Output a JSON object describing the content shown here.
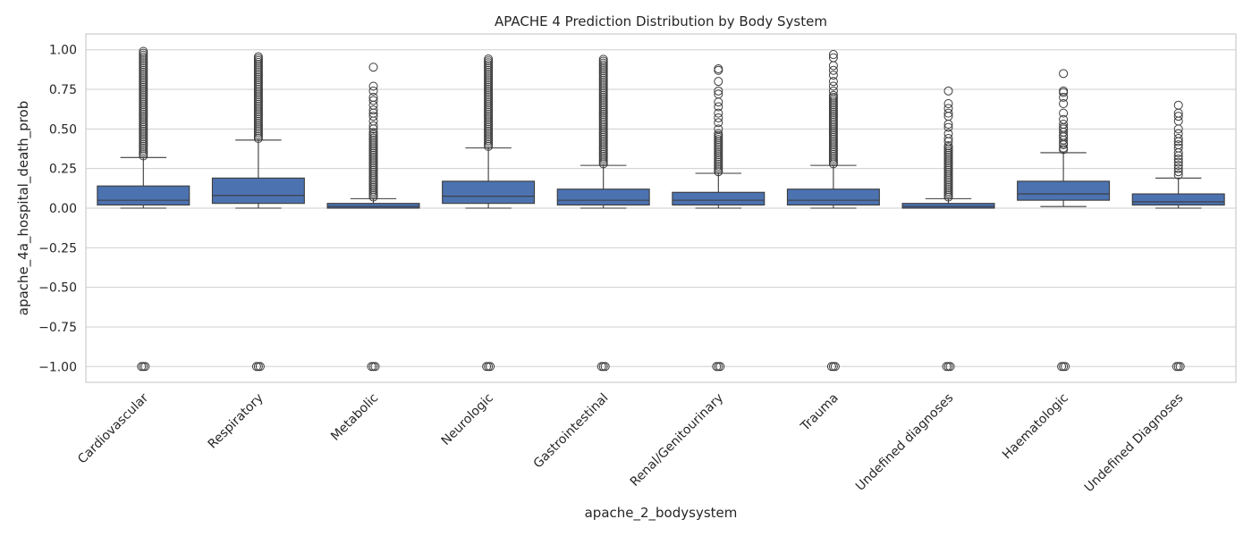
{
  "chart_data": {
    "type": "box",
    "title": "APACHE 4 Prediction Distribution by Body System",
    "xlabel": "apache_2_bodysystem",
    "ylabel": "apache_4a_hospital_death_prob",
    "ylim": [
      -1.1,
      1.1
    ],
    "yticks": [
      -1.0,
      -0.75,
      -0.5,
      -0.25,
      0.0,
      0.25,
      0.5,
      0.75,
      1.0
    ],
    "ytick_labels": [
      "−1.00",
      "−0.75",
      "−0.50",
      "−0.25",
      "0.00",
      "0.25",
      "0.50",
      "0.75",
      "1.00"
    ],
    "grid": true,
    "series_color": "#4c72b0",
    "categories": [
      "Cardiovascular",
      "Respiratory",
      "Metabolic",
      "Neurologic",
      "Gastrointestinal",
      "Renal/Genitourinary",
      "Trauma",
      "Undefined diagnoses",
      "Haematologic",
      "Undefined Diagnoses"
    ],
    "boxes": [
      {
        "whislo": 0.0,
        "q1": 0.02,
        "median": 0.05,
        "q3": 0.14,
        "whishi": 0.32,
        "fliers": [
          -1.0
        ],
        "flier_range": [
          0.33,
          0.99
        ]
      },
      {
        "whislo": 0.0,
        "q1": 0.03,
        "median": 0.08,
        "q3": 0.19,
        "whishi": 0.43,
        "fliers": [
          -1.0
        ],
        "flier_range": [
          0.44,
          0.96
        ]
      },
      {
        "whislo": 0.0,
        "q1": 0.0,
        "median": 0.01,
        "q3": 0.03,
        "whishi": 0.06,
        "fliers": [
          -1.0,
          0.89,
          0.77,
          0.74,
          0.7,
          0.68,
          0.65,
          0.62,
          0.6,
          0.58,
          0.55,
          0.52,
          0.5
        ],
        "flier_range": [
          0.07,
          0.48
        ]
      },
      {
        "whislo": 0.0,
        "q1": 0.03,
        "median": 0.075,
        "q3": 0.17,
        "whishi": 0.38,
        "fliers": [
          -1.0
        ],
        "flier_range": [
          0.39,
          0.95
        ]
      },
      {
        "whislo": 0.0,
        "q1": 0.02,
        "median": 0.05,
        "q3": 0.12,
        "whishi": 0.27,
        "fliers": [
          -1.0
        ],
        "flier_range": [
          0.28,
          0.94
        ]
      },
      {
        "whislo": 0.0,
        "q1": 0.02,
        "median": 0.05,
        "q3": 0.1,
        "whishi": 0.22,
        "fliers": [
          -1.0,
          0.88,
          0.87,
          0.8,
          0.74,
          0.72,
          0.67,
          0.64,
          0.6,
          0.57,
          0.54,
          0.5
        ],
        "flier_range": [
          0.23,
          0.48
        ]
      },
      {
        "whislo": 0.0,
        "q1": 0.02,
        "median": 0.05,
        "q3": 0.12,
        "whishi": 0.27,
        "fliers": [
          -1.0,
          0.97,
          0.95,
          0.9,
          0.87,
          0.84,
          0.8,
          0.77,
          0.74
        ],
        "flier_range": [
          0.28,
          0.72
        ]
      },
      {
        "whislo": 0.0,
        "q1": 0.0,
        "median": 0.01,
        "q3": 0.03,
        "whishi": 0.06,
        "fliers": [
          -1.0,
          0.74,
          0.66,
          0.63,
          0.6,
          0.58,
          0.53,
          0.51,
          0.47,
          0.44,
          0.42
        ],
        "flier_range": [
          0.07,
          0.4
        ]
      },
      {
        "whislo": 0.01,
        "q1": 0.05,
        "median": 0.09,
        "q3": 0.17,
        "whishi": 0.35,
        "fliers": [
          -1.0,
          0.85,
          0.74,
          0.73,
          0.7,
          0.66,
          0.6,
          0.56,
          0.53,
          0.51,
          0.5,
          0.48,
          0.46,
          0.45,
          0.43,
          0.41,
          0.4,
          0.38,
          0.37
        ],
        "flier_range": []
      },
      {
        "whislo": 0.0,
        "q1": 0.02,
        "median": 0.04,
        "q3": 0.09,
        "whishi": 0.19,
        "fliers": [
          -1.0,
          0.65,
          0.6,
          0.58,
          0.55,
          0.5,
          0.47,
          0.44,
          0.42,
          0.4,
          0.38,
          0.35,
          0.33,
          0.31,
          0.29,
          0.27,
          0.25,
          0.23,
          0.21
        ],
        "flier_range": []
      }
    ]
  }
}
